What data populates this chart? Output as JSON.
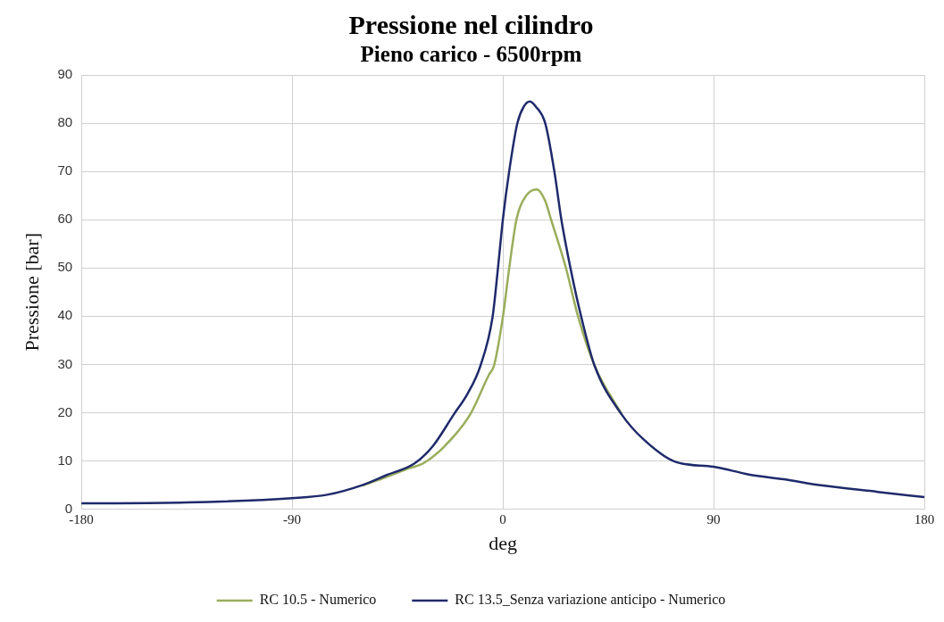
{
  "chart_data": {
    "type": "line",
    "title": "Pressione nel cilindro",
    "subtitle": "Pieno carico - 6500rpm",
    "xlabel": "deg",
    "ylabel": "Pressione [bar]",
    "xlim": [
      -180,
      180
    ],
    "xticks": [
      -180,
      -90,
      0,
      90,
      180
    ],
    "ylim": [
      0,
      90
    ],
    "yticks": [
      0,
      10,
      20,
      30,
      40,
      50,
      60,
      70,
      80,
      90
    ],
    "grid": true,
    "legend": "bottom",
    "marker": "none",
    "line_style": "solid",
    "series": [
      {
        "name": "RC 10.5 - Numerico",
        "color": "#9aad5b",
        "x": [
          -60,
          -50,
          -40,
          -34,
          -25,
          -14,
          -5.8,
          -3.8,
          0,
          2.7,
          5.8,
          10,
          14.5,
          18,
          20.6,
          27,
          32.2,
          39.2,
          50.8
        ],
        "values": [
          4.9,
          6.6,
          8.5,
          9.5,
          13,
          19.6,
          28,
          29.7,
          39.8,
          49.9,
          60,
          65,
          66.3,
          64,
          60,
          49.9,
          39.8,
          29.7,
          19.6
        ]
      },
      {
        "name": "RC 13.5_Senza variazione anticipo - Numerico",
        "color": "#1f2a6b",
        "x": [
          -180,
          -135,
          -90,
          -75,
          -60,
          -50,
          -37.7,
          -30,
          -21,
          -15,
          -9.6,
          -4.4,
          -2.1,
          0,
          2.7,
          6.2,
          9,
          11.5,
          14,
          18.1,
          22,
          25,
          28.9,
          33.5,
          39.2,
          50.8,
          60,
          73.8,
          90,
          105,
          120,
          135,
          160,
          180
        ],
        "values": [
          1.2,
          1.4,
          2.3,
          3,
          5,
          7,
          9.5,
          13,
          19.6,
          24,
          29.7,
          39.8,
          49.9,
          60,
          70,
          80,
          83.5,
          84.5,
          83.5,
          80,
          70,
          60,
          49.9,
          39.8,
          29.7,
          19.6,
          14.5,
          9.8,
          8.8,
          7.2,
          6.2,
          5,
          3.6,
          2.5
        ]
      }
    ]
  }
}
